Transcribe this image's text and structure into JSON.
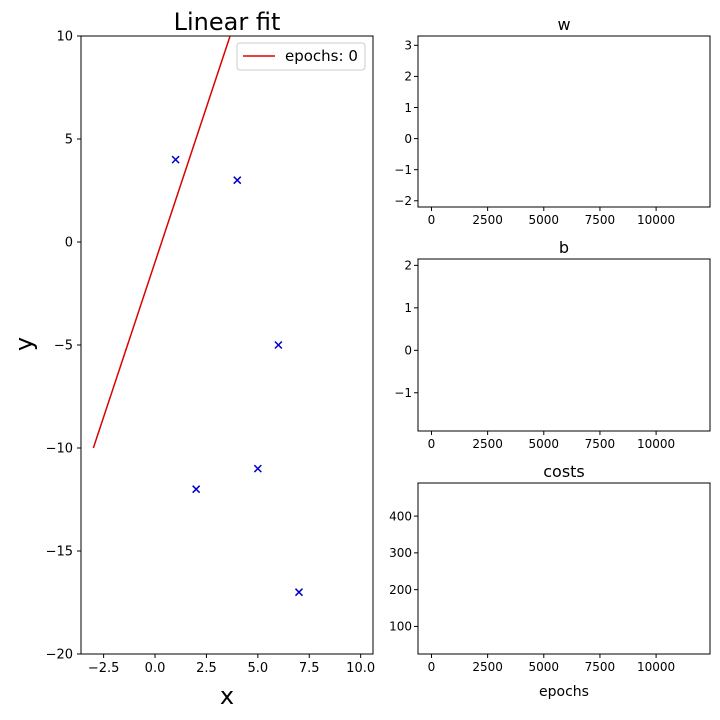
{
  "chart_data": [
    {
      "id": "main",
      "type": "scatter",
      "title": "Linear fit",
      "xlabel": "x",
      "ylabel": "y",
      "xlim": [
        -3.6,
        10.6
      ],
      "ylim": [
        -20,
        10
      ],
      "xticks": [
        -2.5,
        0,
        2.5,
        5,
        7.5,
        10
      ],
      "xtick_labels": [
        "−2.5",
        "0.0",
        "2.5",
        "5.0",
        "7.5",
        "10.0"
      ],
      "yticks": [
        -20,
        -15,
        -10,
        -5,
        0,
        5,
        10
      ],
      "ytick_labels": [
        "−20",
        "−15",
        "−10",
        "−5",
        "0",
        "5",
        "10"
      ],
      "points": [
        {
          "x": 1,
          "y": 4
        },
        {
          "x": 2,
          "y": -12
        },
        {
          "x": 4,
          "y": 3
        },
        {
          "x": 5,
          "y": -11
        },
        {
          "x": 6,
          "y": -5
        },
        {
          "x": 7,
          "y": -17
        }
      ],
      "point_color": "#0000cc",
      "fit_line": {
        "x": [
          -3,
          3.65
        ],
        "y": [
          -10,
          10
        ],
        "color": "#dd0000"
      },
      "legend": {
        "label": "epochs: 0",
        "placement": "top-right"
      },
      "grid": false
    },
    {
      "id": "w",
      "type": "line",
      "title": "w",
      "xlabel": "",
      "xlim": [
        -600,
        12400
      ],
      "ylim": [
        -2.2,
        3.3
      ],
      "xticks": [
        0,
        2500,
        5000,
        7500,
        10000
      ],
      "xtick_labels": [
        "0",
        "2500",
        "5000",
        "7500",
        "10000"
      ],
      "yticks": [
        -2,
        -1,
        0,
        1,
        2,
        3
      ],
      "ytick_labels": [
        "−2",
        "−1",
        "0",
        "1",
        "2",
        "3"
      ],
      "series": [],
      "grid": false
    },
    {
      "id": "b",
      "type": "line",
      "title": "b",
      "xlabel": "",
      "xlim": [
        -600,
        12400
      ],
      "ylim": [
        -1.9,
        2.15
      ],
      "xticks": [
        0,
        2500,
        5000,
        7500,
        10000
      ],
      "xtick_labels": [
        "0",
        "2500",
        "5000",
        "7500",
        "10000"
      ],
      "yticks": [
        -1,
        0,
        1,
        2
      ],
      "ytick_labels": [
        "−1",
        "0",
        "1",
        "2"
      ],
      "series": [],
      "grid": false
    },
    {
      "id": "costs",
      "type": "line",
      "title": "costs",
      "xlabel": "epochs",
      "xlim": [
        -600,
        12400
      ],
      "ylim": [
        25,
        490
      ],
      "xticks": [
        0,
        2500,
        5000,
        7500,
        10000
      ],
      "xtick_labels": [
        "0",
        "2500",
        "5000",
        "7500",
        "10000"
      ],
      "yticks": [
        100,
        200,
        300,
        400
      ],
      "ytick_labels": [
        "100",
        "200",
        "300",
        "400"
      ],
      "series": [],
      "grid": false
    }
  ]
}
